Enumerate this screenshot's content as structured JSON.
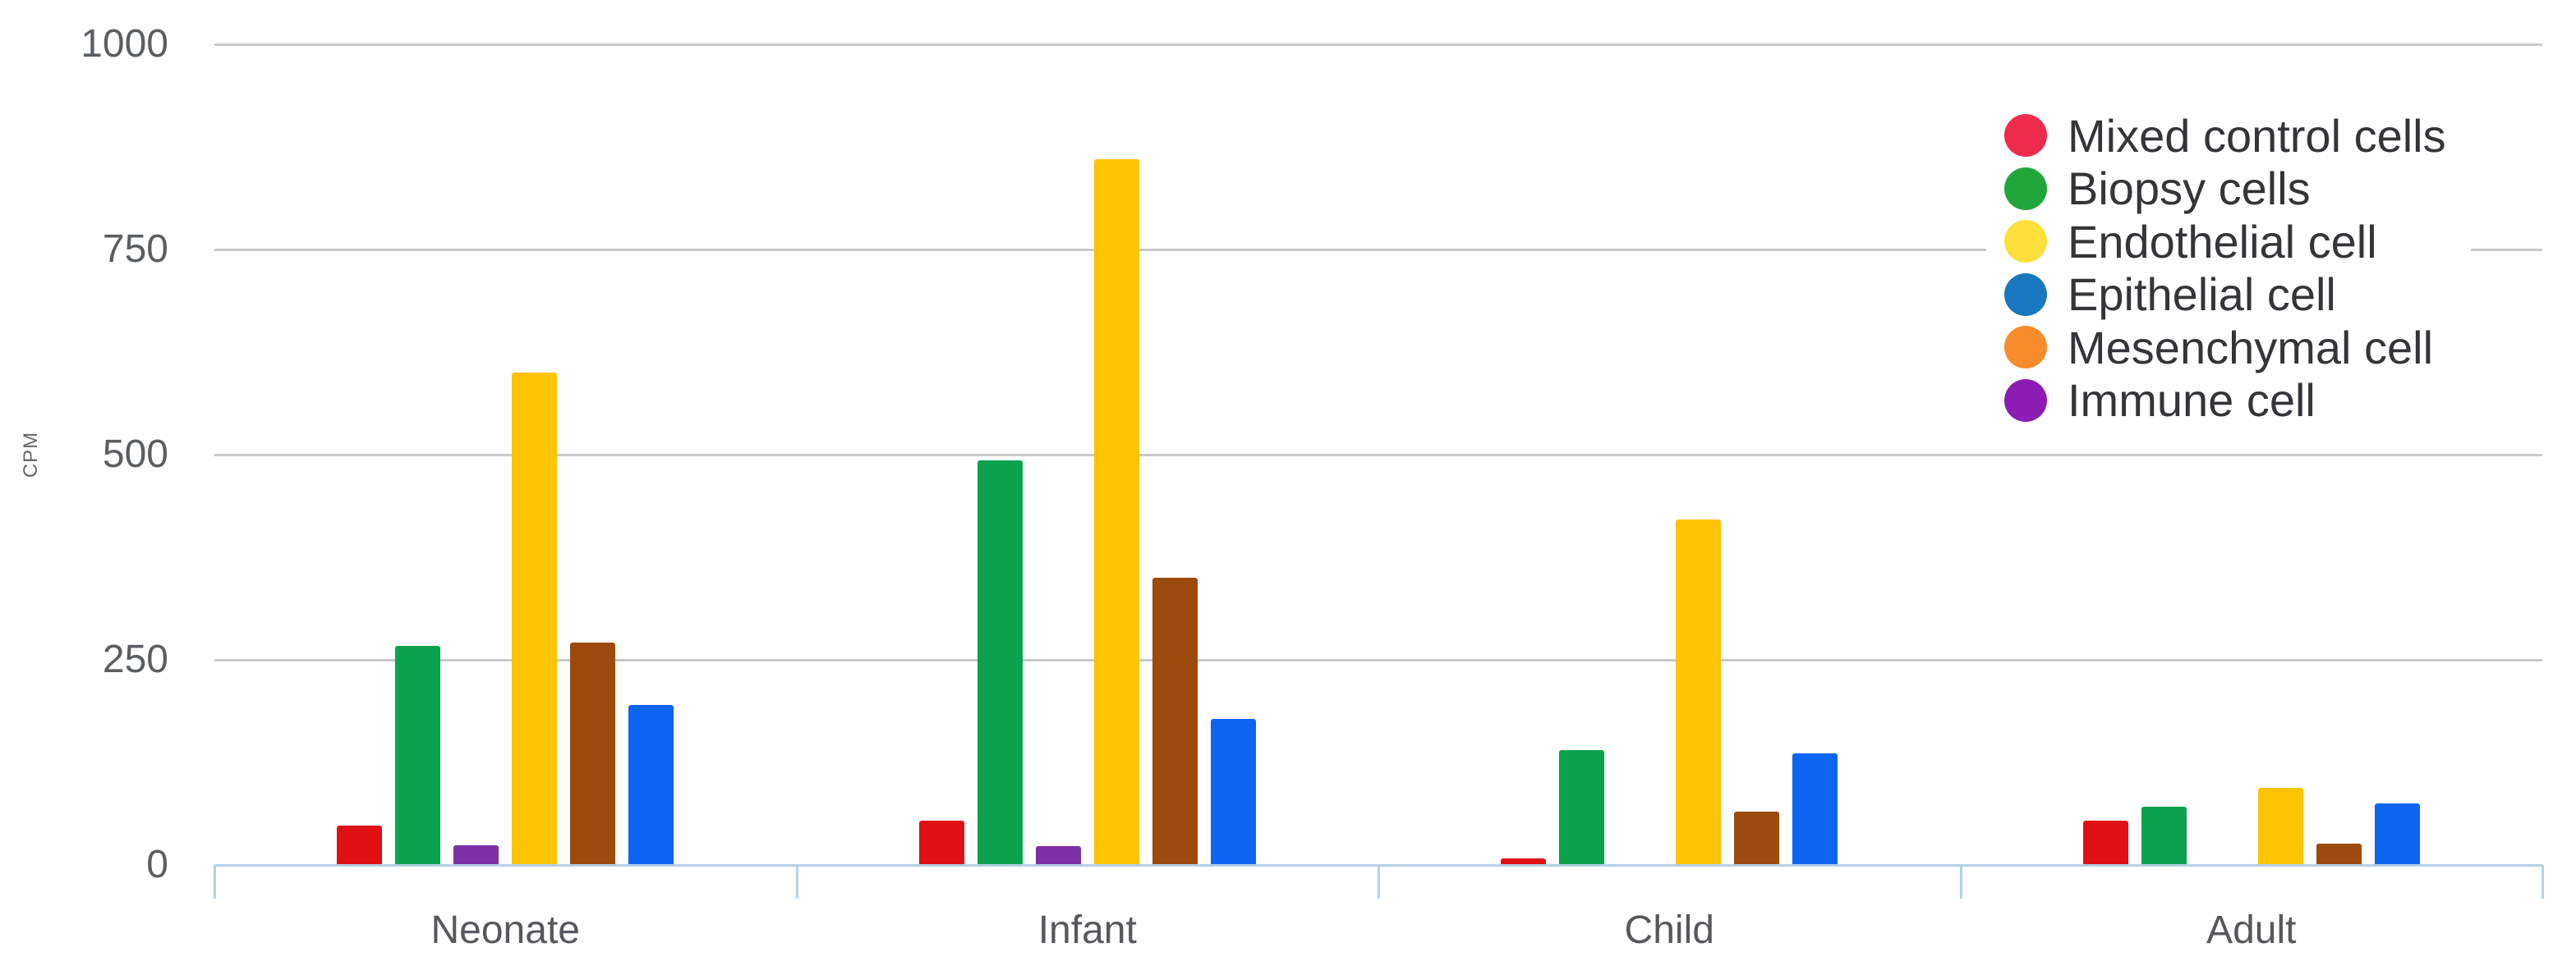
{
  "chart_data": {
    "type": "bar",
    "title": "",
    "xlabel": "",
    "ylabel": "CPM",
    "categories": [
      "Neonate",
      "Infant",
      "Child",
      "Adult"
    ],
    "y_ticks": [
      0,
      250,
      500,
      750,
      1000
    ],
    "ylim": [
      0,
      1000
    ],
    "grid": true,
    "legend_position": "top-right",
    "series": [
      {
        "name": "Mixed control cells",
        "legend_color": "#ee2b4d",
        "bar_color": "#e01114",
        "values": [
          48,
          54,
          8,
          54
        ]
      },
      {
        "name": "Biopsy cells",
        "legend_color": "#21a63c",
        "bar_color": "#0ba24d",
        "values": [
          267,
          493,
          140,
          71
        ]
      },
      {
        "name": "Endothelial cell",
        "legend_color": "#fde03c",
        "bar_color": "#fcc405",
        "values": [
          600,
          860,
          421,
          94
        ]
      },
      {
        "name": "Epithelial cell",
        "legend_color": "#1878c0",
        "bar_color": "#0d65f2",
        "values": [
          195,
          178,
          136,
          75
        ]
      },
      {
        "name": "Mesenchymal cell",
        "legend_color": "#f68c2c",
        "bar_color": "#9c4a0e",
        "values": [
          271,
          350,
          65,
          26
        ]
      },
      {
        "name": "Immune cell",
        "legend_color": "#8c1cb4",
        "bar_color": "#7d2fa5",
        "values": [
          24,
          23,
          0,
          0
        ]
      }
    ],
    "bar_order_by_series_index": [
      0,
      1,
      5,
      2,
      4,
      3
    ]
  },
  "colors": {
    "background": "#ffffff",
    "gridline": "#c9c9c9",
    "axis_baseline": "#b4d0e8",
    "tick_text": "#5b5e61",
    "category_text": "#56585b",
    "legend_text": "#343538",
    "ylabel_text": "#666666"
  }
}
